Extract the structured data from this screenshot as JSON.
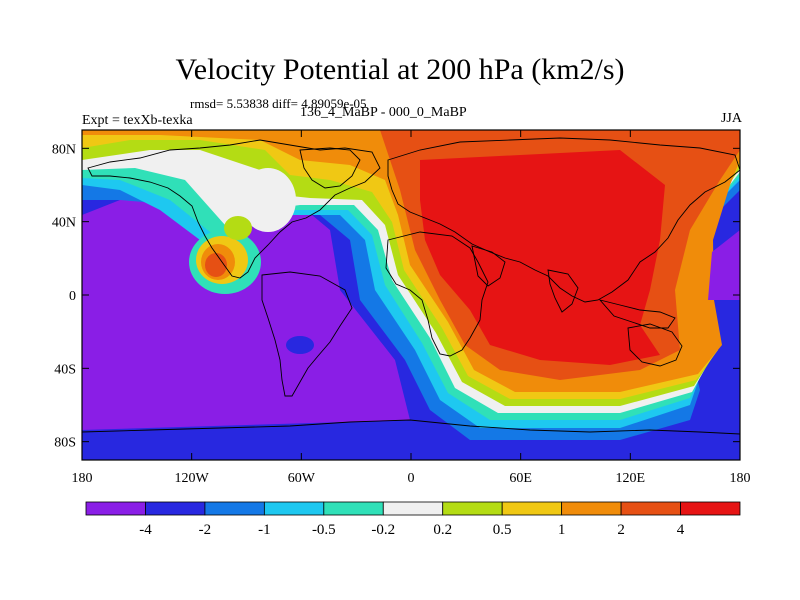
{
  "header": {
    "title": "Velocity Potential at 200 hPa (km2/s)",
    "stats": "rmsd= 5.53838 diff= 4.89059e-05",
    "left_label": "Expt = texXb-texka",
    "center_label": "136_4_MaBP - 000_0_MaBP",
    "right_label": "JJA"
  },
  "chart_data": {
    "type": "heatmap",
    "title": "Velocity Potential at 200 hPa (km2/s)",
    "xlabel": "",
    "ylabel": "",
    "xlim": [
      -180,
      180
    ],
    "ylim": [
      -90,
      90
    ],
    "x_ticks": [
      {
        "value": -180,
        "label": "180"
      },
      {
        "value": -120,
        "label": "120W"
      },
      {
        "value": -60,
        "label": "60W"
      },
      {
        "value": 0,
        "label": "0"
      },
      {
        "value": 60,
        "label": "60E"
      },
      {
        "value": 120,
        "label": "120E"
      },
      {
        "value": 180,
        "label": "180"
      }
    ],
    "y_ticks": [
      {
        "value": 80,
        "label": "80N"
      },
      {
        "value": 40,
        "label": "40N"
      },
      {
        "value": 0,
        "label": "0"
      },
      {
        "value": -40,
        "label": "40S"
      },
      {
        "value": -80,
        "label": "80S"
      }
    ],
    "colorbar": {
      "levels": [
        -4,
        -2,
        -1,
        -0.5,
        -0.2,
        0.2,
        0.5,
        1,
        2,
        4
      ],
      "labels": [
        "-4",
        "-2",
        "-1",
        "-0.5",
        "-0.2",
        "0.2",
        "0.5",
        "1",
        "2",
        "4"
      ],
      "colors": [
        "#8a1ee6",
        "#2828e0",
        "#1478e6",
        "#1ec8f0",
        "#30e0b8",
        "#f0f0f0",
        "#b4dc14",
        "#f0c814",
        "#f08c0a",
        "#e65014",
        "#e61414"
      ]
    },
    "features": [
      {
        "name": "Pacific/Americas minimum",
        "lon": -110,
        "lat": -20,
        "level": "below -4"
      },
      {
        "name": "South America minimum",
        "lon": -60,
        "lat": -20,
        "level": "below -4"
      },
      {
        "name": "Eurasia/Indian Ocean maximum",
        "lon": 80,
        "lat": 20,
        "level": "above 4"
      },
      {
        "name": "Mexico local maximum",
        "lon": -105,
        "lat": 15,
        "level": "2 to 4"
      },
      {
        "name": "North Pacific maximum",
        "lon": -120,
        "lat": 78,
        "level": "1 to 2"
      }
    ]
  }
}
